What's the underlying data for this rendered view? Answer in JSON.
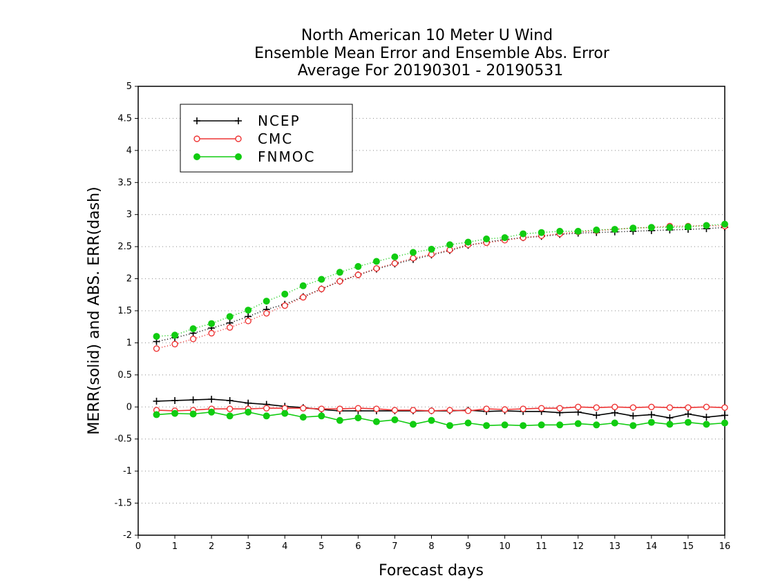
{
  "chart_data": {
    "type": "line",
    "title_lines": [
      "North American 10 Meter U Wind",
      "Ensemble Mean Error and Ensemble Abs. Error",
      "Average For 20190301 - 20190531"
    ],
    "xlabel": "Forecast days",
    "ylabel": "MERR(solid) and ABS. ERR(dash)",
    "xlim": [
      0,
      16
    ],
    "ylim": [
      -2,
      5
    ],
    "x_ticks": [
      "0",
      "1",
      "2",
      "3",
      "4",
      "5",
      "6",
      "7",
      "8",
      "9",
      "10",
      "11",
      "12",
      "13",
      "14",
      "15",
      "16"
    ],
    "y_ticks": [
      "-2",
      "-1.5",
      "-1",
      "-0.5",
      "0",
      "0.5",
      "1",
      "1.5",
      "2",
      "2.5",
      "3",
      "3.5",
      "4",
      "4.5",
      "5"
    ],
    "grid": "horizontal dotted",
    "legend_position": "top-left",
    "x": [
      0.5,
      1,
      1.5,
      2,
      2.5,
      3,
      3.5,
      4,
      4.5,
      5,
      5.5,
      6,
      6.5,
      7,
      7.5,
      8,
      8.5,
      9,
      9.5,
      10,
      10.5,
      11,
      11.5,
      12,
      12.5,
      13,
      13.5,
      14,
      14.5,
      15,
      15.5,
      16
    ],
    "series": [
      {
        "name": "NCEP",
        "color": "#000000",
        "marker": "plus",
        "merr": [
          0.09,
          0.1,
          0.11,
          0.12,
          0.1,
          0.06,
          0.04,
          0.01,
          -0.01,
          -0.04,
          -0.06,
          -0.06,
          -0.06,
          -0.06,
          -0.06,
          -0.06,
          -0.06,
          -0.05,
          -0.07,
          -0.06,
          -0.07,
          -0.07,
          -0.09,
          -0.08,
          -0.13,
          -0.09,
          -0.14,
          -0.12,
          -0.17,
          -0.11,
          -0.16,
          -0.13
        ],
        "abs_err": [
          1.02,
          1.08,
          1.15,
          1.23,
          1.31,
          1.41,
          1.52,
          1.6,
          1.72,
          1.84,
          1.96,
          2.06,
          2.15,
          2.23,
          2.3,
          2.37,
          2.44,
          2.52,
          2.57,
          2.61,
          2.64,
          2.66,
          2.69,
          2.71,
          2.72,
          2.73,
          2.74,
          2.75,
          2.76,
          2.77,
          2.78,
          2.8
        ]
      },
      {
        "name": "CMC",
        "color": "#ee3333",
        "marker": "open-circle",
        "merr": [
          -0.05,
          -0.06,
          -0.05,
          -0.03,
          -0.03,
          -0.03,
          -0.02,
          -0.02,
          -0.02,
          -0.03,
          -0.03,
          -0.02,
          -0.03,
          -0.05,
          -0.05,
          -0.06,
          -0.05,
          -0.06,
          -0.03,
          -0.04,
          -0.03,
          -0.02,
          -0.02,
          0.0,
          -0.01,
          0.0,
          -0.01,
          0.0,
          -0.01,
          -0.01,
          0.0,
          -0.01
        ],
        "abs_err": [
          0.91,
          0.98,
          1.06,
          1.15,
          1.24,
          1.34,
          1.46,
          1.58,
          1.71,
          1.84,
          1.96,
          2.06,
          2.16,
          2.24,
          2.32,
          2.38,
          2.45,
          2.53,
          2.56,
          2.6,
          2.64,
          2.67,
          2.7,
          2.73,
          2.75,
          2.77,
          2.79,
          2.8,
          2.82,
          2.82,
          2.83,
          2.82
        ]
      },
      {
        "name": "FNMOC",
        "color": "#11cc11",
        "marker": "filled-circle",
        "merr": [
          -0.12,
          -0.1,
          -0.11,
          -0.08,
          -0.14,
          -0.08,
          -0.14,
          -0.1,
          -0.16,
          -0.14,
          -0.21,
          -0.17,
          -0.23,
          -0.2,
          -0.27,
          -0.21,
          -0.29,
          -0.25,
          -0.29,
          -0.28,
          -0.29,
          -0.28,
          -0.28,
          -0.26,
          -0.28,
          -0.25,
          -0.29,
          -0.24,
          -0.27,
          -0.24,
          -0.27,
          -0.25
        ],
        "abs_err": [
          1.1,
          1.12,
          1.22,
          1.3,
          1.41,
          1.51,
          1.65,
          1.76,
          1.89,
          1.99,
          2.1,
          2.19,
          2.27,
          2.34,
          2.41,
          2.46,
          2.53,
          2.57,
          2.62,
          2.64,
          2.7,
          2.72,
          2.74,
          2.74,
          2.76,
          2.77,
          2.79,
          2.8,
          2.8,
          2.81,
          2.83,
          2.85
        ]
      }
    ]
  }
}
